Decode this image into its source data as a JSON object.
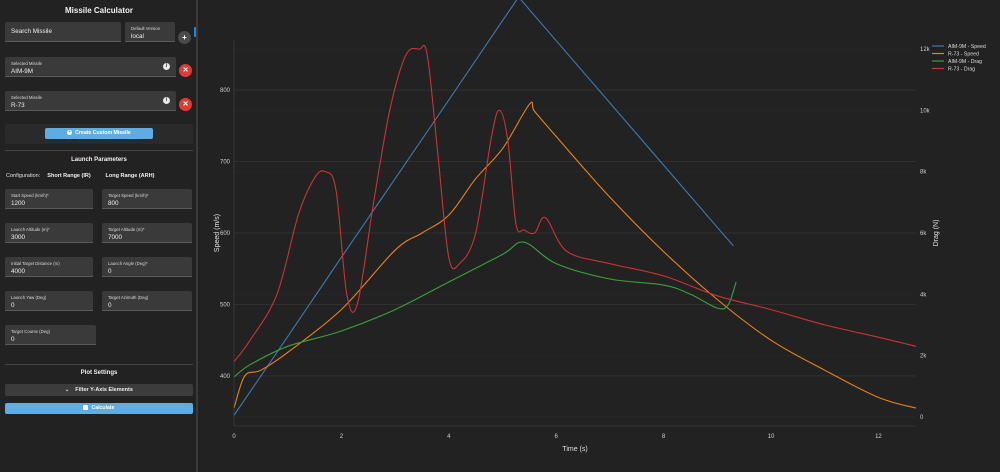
{
  "sidebar": {
    "title": "Missile Calculator",
    "search_label": "Search Missile",
    "default_version_label": "Default Version",
    "default_version_value": "local",
    "add_symbol": "+",
    "collapse_symbol": "‹",
    "selected": [
      {
        "label": "Selected Missile",
        "value": "AIM-9M"
      },
      {
        "label": "Selected Missile",
        "value": "R-73"
      }
    ],
    "info_symbol": "i",
    "remove_symbol": "✕",
    "create_custom_label": "Create Custom Missile",
    "launch_title": "Launch Parameters",
    "config_label": "Configuration:",
    "config_options": [
      "Short Range (IR)",
      "Long Range (ARH)"
    ],
    "fields": {
      "start_speed": {
        "label": "Start Speed (km/h)*",
        "value": "1200"
      },
      "target_speed": {
        "label": "Target Speed (km/h)*",
        "value": "800"
      },
      "launch_altitude": {
        "label": "Launch Altitude (m)*",
        "value": "3000"
      },
      "target_altitude": {
        "label": "Target Altitude (m)*",
        "value": "7000"
      },
      "initial_distance": {
        "label": "Initial Target Distance (m)",
        "value": "4000"
      },
      "launch_angle": {
        "label": "Launch Angle (Deg)*",
        "value": "0"
      },
      "launch_yaw": {
        "label": "Launch Yaw (Deg)",
        "value": "0"
      },
      "target_azimuth": {
        "label": "Target Azimuth (Deg)",
        "value": "0"
      },
      "target_course": {
        "label": "Target Course (Deg)",
        "value": "0"
      }
    },
    "plot_title": "Plot Settings",
    "filter_label": "Filter Y-Axis Elements",
    "calculate_label": "Calculate"
  },
  "chart_data": {
    "type": "line",
    "xlabel": "Time (s)",
    "ylabel": "Speed (m/s)",
    "y2label": "Drag (N)",
    "xlim": [
      0,
      12.7
    ],
    "ylim": [
      330,
      870
    ],
    "y2lim": [
      -300,
      12300
    ],
    "x_ticks": [
      0,
      2,
      4,
      6,
      8,
      10,
      12
    ],
    "y_ticks": [
      400,
      500,
      600,
      700,
      800
    ],
    "y2_ticks": [
      0,
      2000,
      4000,
      6000,
      8000,
      10000,
      12000
    ],
    "y2_tick_labels": [
      "0",
      "2k",
      "4k",
      "6k",
      "8k",
      "10k",
      "12k"
    ],
    "legend_position": "top-right",
    "grid": true,
    "series": [
      {
        "name": "AIM-9M - Speed",
        "axis": "y",
        "color": "#3d7ab3",
        "x": [
          0,
          0.5,
          1,
          2,
          3,
          4,
          5,
          5.3,
          6,
          7,
          8,
          9,
          9.3
        ],
        "y": [
          345,
          400,
          455,
          566,
          676,
          786,
          897,
          930,
          869,
          782,
          695,
          608,
          582
        ]
      },
      {
        "name": "R-73 - Speed",
        "axis": "y",
        "color": "#e8821e",
        "x": [
          0,
          0.2,
          0.5,
          1,
          2,
          3,
          3.5,
          4,
          4.5,
          5,
          5.5,
          5.6,
          6,
          7,
          8,
          9,
          10,
          11,
          12,
          12.7
        ],
        "y": [
          355,
          400,
          408,
          433,
          493,
          576,
          600,
          625,
          676,
          718,
          780,
          770,
          735,
          650,
          574,
          507,
          450,
          408,
          370,
          355
        ]
      },
      {
        "name": "AIM-9M - Drag",
        "axis": "y2",
        "color": "#3aa13a",
        "x": [
          0,
          0.3,
          1,
          2,
          3,
          4,
          5,
          5.4,
          6,
          7,
          8,
          8.5,
          9,
          9.2,
          9.35
        ],
        "y": [
          1300,
          1700,
          2300,
          2800,
          3500,
          4400,
          5300,
          5700,
          5000,
          4500,
          4300,
          4000,
          3550,
          3650,
          4400
        ]
      },
      {
        "name": "R-73 - Drag",
        "axis": "y2",
        "color": "#cc3333",
        "x": [
          0,
          0.3,
          0.8,
          1.2,
          1.5,
          1.7,
          1.9,
          2.1,
          2.3,
          2.6,
          2.9,
          3.2,
          3.45,
          3.6,
          3.8,
          4.0,
          4.2,
          4.5,
          4.8,
          4.95,
          5.1,
          5.25,
          5.4,
          5.6,
          5.8,
          6.2,
          7,
          8,
          9,
          10,
          11,
          12,
          12.7
        ],
        "y": [
          1800,
          2500,
          4000,
          6600,
          7800,
          8000,
          7400,
          4000,
          3700,
          7000,
          10000,
          11800,
          12000,
          11800,
          8500,
          5200,
          5000,
          6000,
          9200,
          10000,
          9000,
          6300,
          6100,
          6000,
          6500,
          5400,
          5000,
          4600,
          3950,
          3500,
          3000,
          2600,
          2300
        ]
      }
    ]
  }
}
